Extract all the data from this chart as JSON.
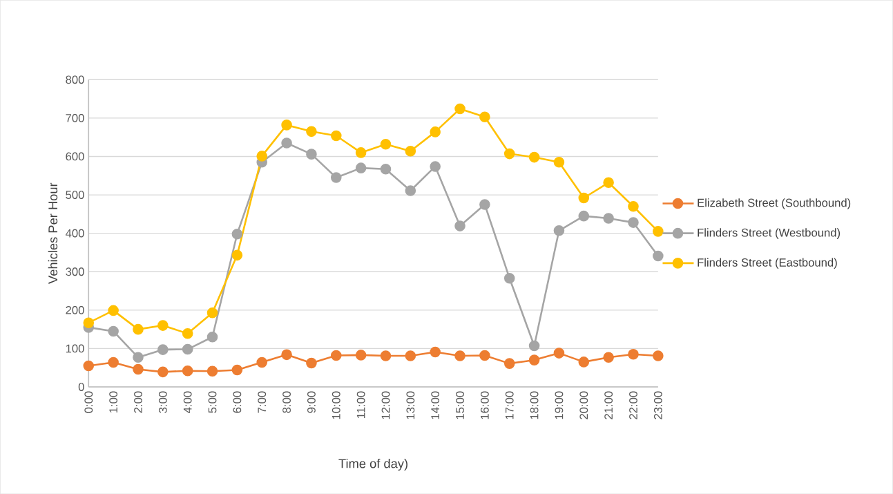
{
  "chart_data": {
    "type": "line",
    "xlabel": "Time of day)",
    "ylabel": "Vehicles Per Hour",
    "categories": [
      "0:00",
      "1:00",
      "2:00",
      "3:00",
      "4:00",
      "5:00",
      "6:00",
      "7:00",
      "8:00",
      "9:00",
      "10:00",
      "11:00",
      "12:00",
      "13:00",
      "14:00",
      "15:00",
      "16:00",
      "17:00",
      "18:00",
      "19:00",
      "20:00",
      "21:00",
      "22:00",
      "23:00"
    ],
    "series": [
      {
        "name": "Elizabeth Street (Southbound)",
        "color": "#ed7d31",
        "values": [
          55,
          64,
          46,
          39,
          42,
          41,
          44,
          64,
          84,
          62,
          82,
          83,
          81,
          81,
          91,
          81,
          82,
          61,
          70,
          88,
          65,
          77,
          85,
          81
        ]
      },
      {
        "name": "Flinders Street (Westbound)",
        "color": "#a5a5a5",
        "values": [
          155,
          145,
          77,
          97,
          98,
          130,
          398,
          585,
          635,
          606,
          545,
          570,
          567,
          511,
          574,
          419,
          475,
          283,
          107,
          407,
          445,
          439,
          428,
          341
        ]
      },
      {
        "name": "Flinders Street (Eastbound)",
        "color": "#ffc000",
        "values": [
          167,
          199,
          150,
          160,
          139,
          193,
          343,
          601,
          682,
          665,
          654,
          610,
          632,
          614,
          664,
          724,
          703,
          607,
          598,
          585,
          492,
          532,
          470,
          405
        ]
      }
    ],
    "ylim": [
      0,
      800
    ],
    "yticks": [
      0,
      100,
      200,
      300,
      400,
      500,
      600,
      700,
      800
    ],
    "grid": "y",
    "legend": "right",
    "marker": "circle",
    "line_style": "solid"
  }
}
